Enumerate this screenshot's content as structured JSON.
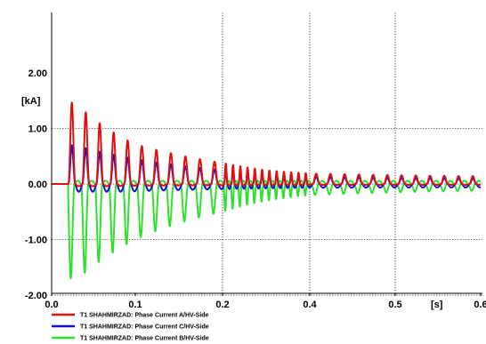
{
  "chart_data": {
    "type": "line",
    "ylabel": "[kA]",
    "xlabel": "[s]",
    "xlim": [
      0.0,
      0.6
    ],
    "ylim": [
      -2.0,
      3.0
    ],
    "x_ticks": [
      {
        "value": 0.0,
        "label": "0.0"
      },
      {
        "value": 0.1,
        "label": "0.1"
      },
      {
        "value": 0.2,
        "label": "0.2"
      },
      {
        "value": 0.4,
        "label": "0.4"
      },
      {
        "value": 0.5,
        "label": "0.5"
      },
      {
        "value": 0.6,
        "label": "0.6"
      }
    ],
    "y_ticks": [
      {
        "value": 2.0,
        "label": "2.00"
      },
      {
        "value": 1.0,
        "label": "1.00"
      },
      {
        "value": 0.0,
        "label": "0.00"
      },
      {
        "value": -1.0,
        "label": "-1.00"
      },
      {
        "value": -2.0,
        "label": "-2.00"
      }
    ],
    "grid": true,
    "legend_position": "bottom-left",
    "frequency_hz": 60,
    "fault_start_s": 0.02,
    "series": [
      {
        "name": "T1 SHAHMIRZAD: Phase Current A/HV-Side",
        "color": "#e01010",
        "decay_peaks": [
          [
            0.028,
            1.47
          ],
          [
            0.1,
            0.72
          ],
          [
            0.2,
            0.38
          ],
          [
            0.3,
            0.25
          ],
          [
            0.4,
            0.19
          ],
          [
            0.5,
            0.16
          ],
          [
            0.6,
            0.14
          ]
        ],
        "min": -0.1
      },
      {
        "name": "T1 SHAHMIRZAD: Phase Current C/HV-Side",
        "color": "#1010d0",
        "decay_peaks": [
          [
            0.028,
            0.7
          ],
          [
            0.1,
            0.45
          ],
          [
            0.2,
            0.25
          ],
          [
            0.3,
            0.18
          ],
          [
            0.4,
            0.13
          ],
          [
            0.5,
            0.11
          ],
          [
            0.6,
            0.1
          ]
        ],
        "min": -0.35
      },
      {
        "name": "T1 SHAHMIRZAD: Phase Current B/HV-Side",
        "color": "#30e030",
        "decay_troughs": [
          [
            0.032,
            -1.7
          ],
          [
            0.1,
            -1.0
          ],
          [
            0.2,
            -0.5
          ],
          [
            0.3,
            -0.3
          ],
          [
            0.4,
            -0.2
          ],
          [
            0.5,
            -0.15
          ],
          [
            0.6,
            -0.12
          ]
        ],
        "max": 0.06
      }
    ]
  }
}
